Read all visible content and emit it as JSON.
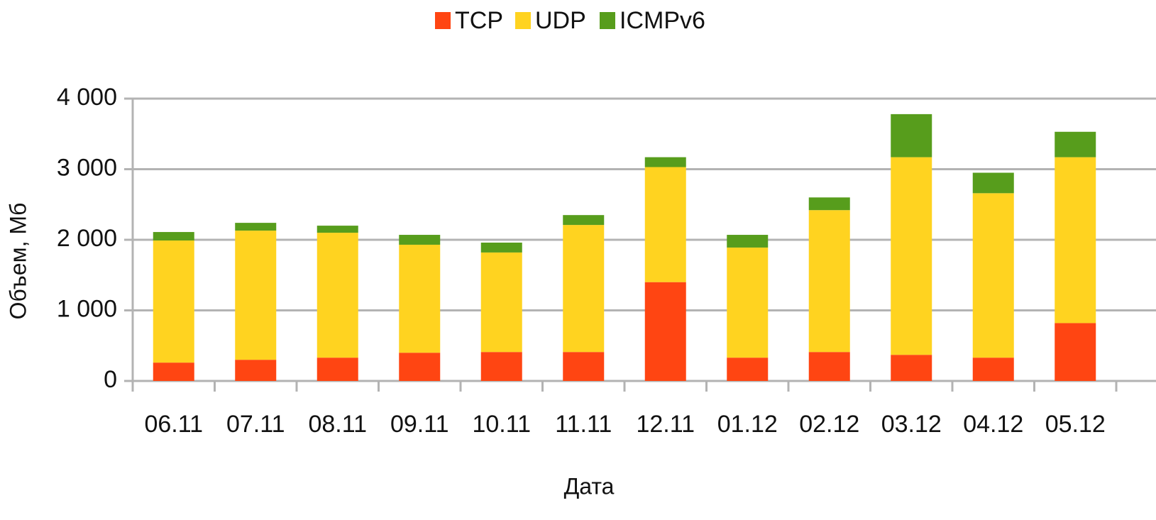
{
  "chart_data": {
    "type": "stacked_bar",
    "x_label": "Дата",
    "y_label": "Объем, Мб",
    "categories": [
      "06.11",
      "07.11",
      "08.11",
      "09.11",
      "10.11",
      "11.11",
      "12.11",
      "01.12",
      "02.12",
      "03.12",
      "04.12",
      "05.12"
    ],
    "series": [
      {
        "name": "TCP",
        "color": "#ff4512",
        "values": [
          260,
          300,
          330,
          400,
          410,
          410,
          1400,
          330,
          410,
          370,
          330,
          820
        ]
      },
      {
        "name": "UDP",
        "color": "#ffd320",
        "values": [
          1730,
          1830,
          1770,
          1530,
          1410,
          1800,
          1630,
          1560,
          2010,
          2800,
          2330,
          2350
        ]
      },
      {
        "name": "ICMPv6",
        "color": "#579d1c",
        "values": [
          120,
          110,
          100,
          140,
          140,
          140,
          140,
          180,
          180,
          610,
          290,
          360
        ]
      }
    ],
    "ylim": [
      0,
      4000
    ],
    "yticks": [
      0,
      {
        "value": 1000,
        "label": "1 000"
      },
      {
        "value": 2000,
        "label": "2 000"
      },
      {
        "value": 3000,
        "label": "3 000"
      },
      {
        "value": 4000,
        "label": "4 000"
      }
    ],
    "grid": true,
    "legend": "top"
  }
}
